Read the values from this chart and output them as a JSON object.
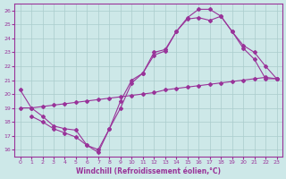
{
  "xlabel": "Windchill (Refroidissement éolien,°C)",
  "bg_color": "#cde8e8",
  "grid_color": "#aacccc",
  "line_color": "#993399",
  "xlim": [
    -0.5,
    23.5
  ],
  "ylim": [
    15.5,
    26.5
  ],
  "xticks": [
    0,
    1,
    2,
    3,
    4,
    5,
    6,
    7,
    8,
    9,
    10,
    11,
    12,
    13,
    14,
    15,
    16,
    17,
    18,
    19,
    20,
    21,
    22,
    23
  ],
  "yticks": [
    16,
    17,
    18,
    19,
    20,
    21,
    22,
    23,
    24,
    25,
    26
  ],
  "curve1_x": [
    0,
    1,
    2,
    3,
    4,
    5,
    6,
    7,
    8,
    9,
    10,
    11,
    12,
    13,
    14,
    15,
    16,
    17,
    18,
    19,
    20,
    21,
    22,
    23
  ],
  "curve1_y": [
    20.3,
    19.0,
    18.4,
    17.7,
    17.5,
    17.4,
    16.3,
    16.0,
    17.5,
    19.5,
    21.0,
    21.5,
    22.8,
    23.1,
    24.5,
    25.5,
    26.1,
    26.1,
    25.6,
    24.5,
    23.3,
    22.5,
    21.1,
    21.1
  ],
  "curve2_x": [
    0,
    1,
    2,
    3,
    4,
    5,
    6,
    7,
    8,
    9,
    10,
    11,
    12,
    13,
    14,
    15,
    16,
    17,
    18,
    19,
    20,
    21,
    22,
    23
  ],
  "curve2_y": [
    19.0,
    19.0,
    19.1,
    19.2,
    19.3,
    19.4,
    19.5,
    19.6,
    19.7,
    19.8,
    19.9,
    20.0,
    20.1,
    20.3,
    20.4,
    20.5,
    20.6,
    20.7,
    20.8,
    20.9,
    21.0,
    21.1,
    21.2,
    21.1
  ],
  "curve3_x": [
    1,
    2,
    3,
    4,
    5,
    6,
    7,
    8,
    9,
    10,
    11,
    12,
    13,
    14,
    15,
    16,
    17,
    18,
    19,
    20,
    21,
    22,
    23
  ],
  "curve3_y": [
    18.4,
    18.0,
    17.5,
    17.2,
    16.9,
    16.3,
    15.8,
    17.5,
    19.0,
    20.8,
    21.5,
    23.0,
    23.2,
    24.5,
    25.4,
    25.5,
    25.3,
    25.6,
    24.5,
    23.5,
    23.0,
    22.0,
    21.1
  ]
}
